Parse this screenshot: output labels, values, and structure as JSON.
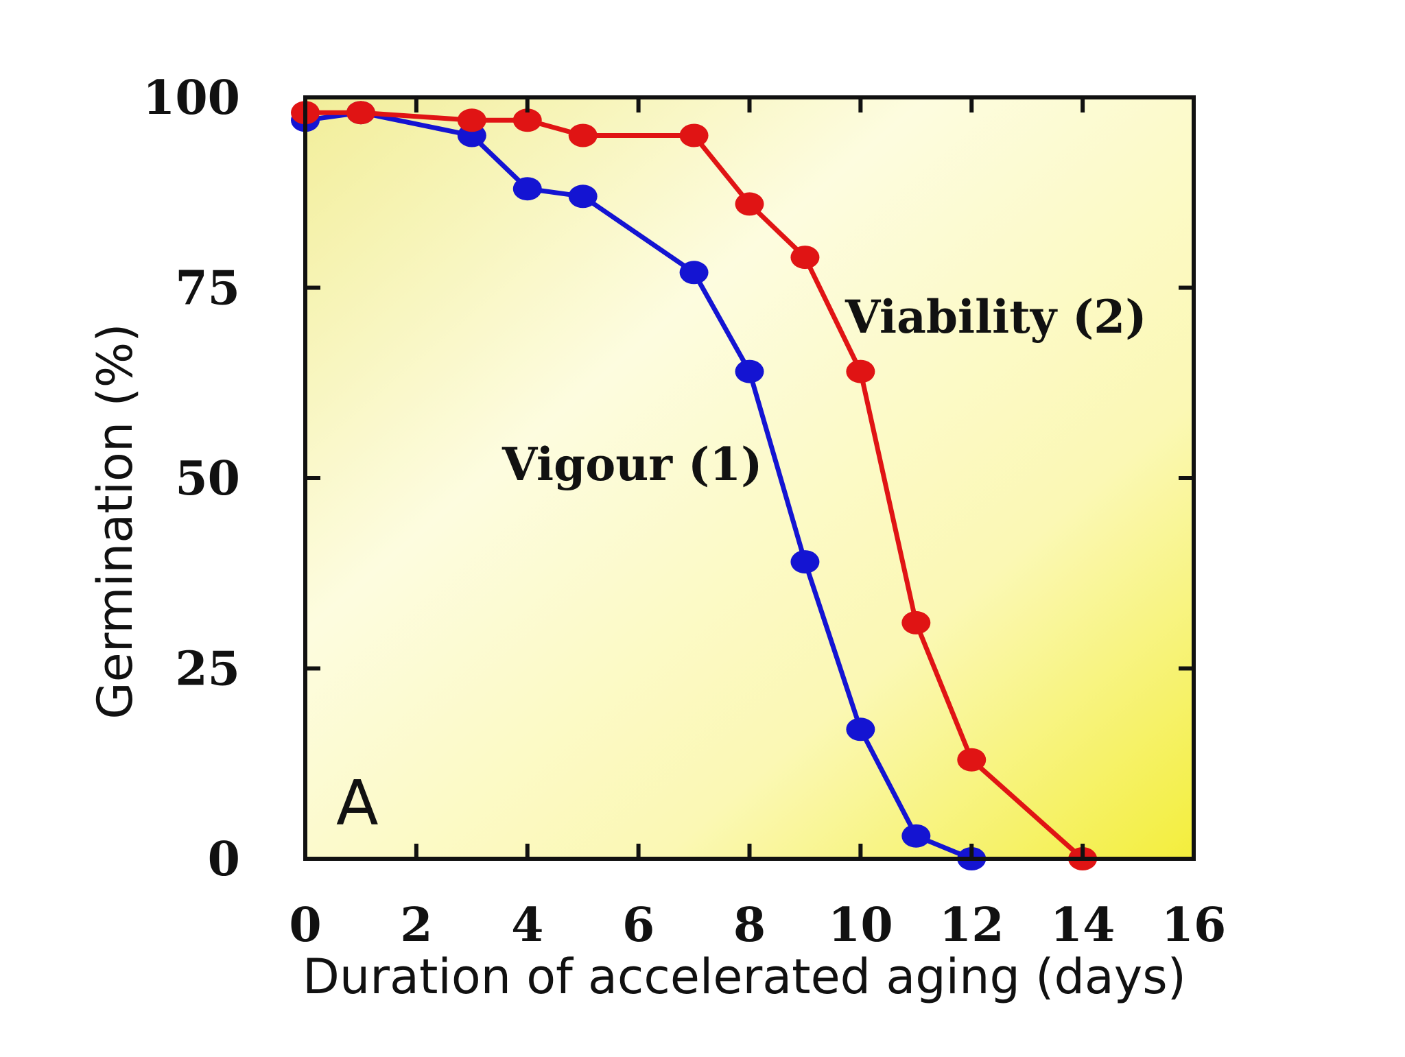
{
  "chart_data": {
    "type": "line",
    "xlabel": "Duration of accelerated aging (days)",
    "ylabel": "Germination (%)",
    "xlim": [
      0,
      16
    ],
    "ylim": [
      0,
      100
    ],
    "xticks": [
      0,
      2,
      4,
      6,
      8,
      10,
      12,
      14,
      16
    ],
    "yticks": [
      0,
      25,
      50,
      75,
      100
    ],
    "panel_label": "A",
    "grid": false,
    "background": "yellow-gradient",
    "series": [
      {
        "name": "Vigour (1)",
        "color": "#1414d2",
        "x": [
          0,
          1,
          3,
          4,
          5,
          7,
          8,
          9,
          10,
          11,
          12
        ],
        "y": [
          97,
          98,
          95,
          88,
          87,
          77,
          64,
          39,
          17,
          3,
          0
        ]
      },
      {
        "name": "Viability (2)",
        "color": "#e01414",
        "x": [
          0,
          1,
          3,
          4,
          5,
          7,
          8,
          9,
          10,
          11,
          12,
          14
        ],
        "y": [
          98,
          98,
          97,
          97,
          95,
          95,
          86,
          79,
          64,
          31,
          13,
          0
        ]
      }
    ]
  }
}
